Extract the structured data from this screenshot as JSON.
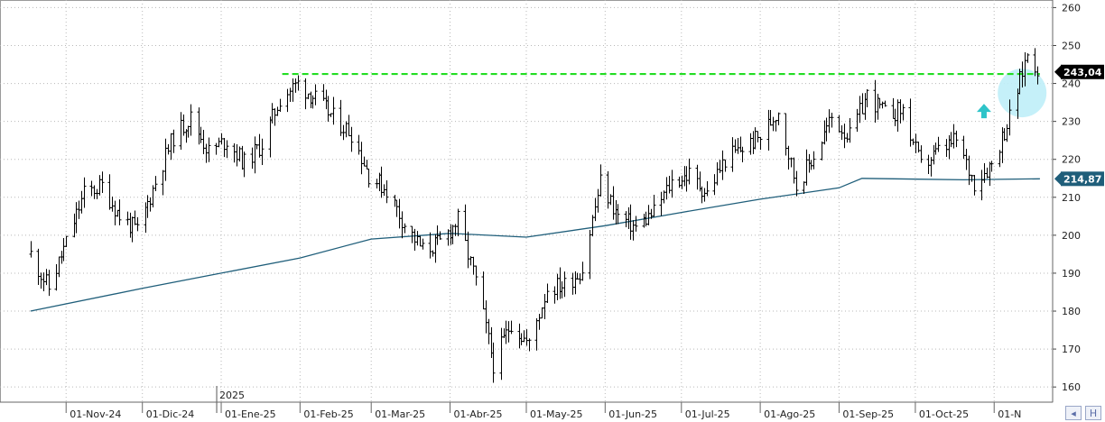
{
  "chart_data": {
    "type": "ohlc",
    "y_axis": {
      "ticks": [
        160,
        170,
        180,
        190,
        200,
        210,
        220,
        230,
        240,
        250,
        260
      ],
      "range": [
        156,
        262
      ],
      "position": "right"
    },
    "x_axis": {
      "labels": [
        "01-Nov-24",
        "01-Dic-24",
        "01-Ene-25",
        "01-Feb-25",
        "01-Mar-25",
        "01-Abr-25",
        "01-May-25",
        "01-Jun-25",
        "01-Jul-25",
        "01-Ago-25",
        "01-Sep-25",
        "01-Oct-25",
        "01-N"
      ],
      "year_marker": "2025"
    },
    "price_path": [
      {
        "date": "2024-10-18",
        "close": 195
      },
      {
        "date": "2024-10-25",
        "close": 186
      },
      {
        "date": "2024-11-01",
        "close": 198
      },
      {
        "date": "2024-11-08",
        "close": 211
      },
      {
        "date": "2024-11-15",
        "close": 213
      },
      {
        "date": "2024-11-22",
        "close": 205
      },
      {
        "date": "2024-11-29",
        "close": 201
      },
      {
        "date": "2024-12-06",
        "close": 214
      },
      {
        "date": "2024-12-13",
        "close": 226
      },
      {
        "date": "2024-12-20",
        "close": 231
      },
      {
        "date": "2024-12-27",
        "close": 222
      },
      {
        "date": "2025-01-03",
        "close": 225
      },
      {
        "date": "2025-01-10",
        "close": 219
      },
      {
        "date": "2025-01-17",
        "close": 224
      },
      {
        "date": "2025-01-24",
        "close": 236
      },
      {
        "date": "2025-01-31",
        "close": 240
      },
      {
        "date": "2025-02-07",
        "close": 236
      },
      {
        "date": "2025-02-14",
        "close": 231
      },
      {
        "date": "2025-02-21",
        "close": 227
      },
      {
        "date": "2025-02-28",
        "close": 216
      },
      {
        "date": "2025-03-07",
        "close": 212
      },
      {
        "date": "2025-03-14",
        "close": 203
      },
      {
        "date": "2025-03-21",
        "close": 196
      },
      {
        "date": "2025-03-28",
        "close": 198
      },
      {
        "date": "2025-04-04",
        "close": 204
      },
      {
        "date": "2025-04-11",
        "close": 188
      },
      {
        "date": "2025-04-18",
        "close": 166
      },
      {
        "date": "2025-04-25",
        "close": 177
      },
      {
        "date": "2025-05-02",
        "close": 171
      },
      {
        "date": "2025-05-09",
        "close": 186
      },
      {
        "date": "2025-05-16",
        "close": 187
      },
      {
        "date": "2025-05-23",
        "close": 191
      },
      {
        "date": "2025-05-30",
        "close": 214
      },
      {
        "date": "2025-06-06",
        "close": 205
      },
      {
        "date": "2025-06-13",
        "close": 202
      },
      {
        "date": "2025-06-20",
        "close": 206
      },
      {
        "date": "2025-06-27",
        "close": 214
      },
      {
        "date": "2025-07-04",
        "close": 216
      },
      {
        "date": "2025-07-11",
        "close": 211
      },
      {
        "date": "2025-07-18",
        "close": 220
      },
      {
        "date": "2025-07-25",
        "close": 223
      },
      {
        "date": "2025-08-01",
        "close": 226
      },
      {
        "date": "2025-08-08",
        "close": 233
      },
      {
        "date": "2025-08-15",
        "close": 213
      },
      {
        "date": "2025-08-22",
        "close": 221
      },
      {
        "date": "2025-08-29",
        "close": 231
      },
      {
        "date": "2025-09-05",
        "close": 226
      },
      {
        "date": "2025-09-12",
        "close": 237
      },
      {
        "date": "2025-09-19",
        "close": 232
      },
      {
        "date": "2025-09-26",
        "close": 233
      },
      {
        "date": "2025-10-03",
        "close": 218
      },
      {
        "date": "2025-10-10",
        "close": 222
      },
      {
        "date": "2025-10-17",
        "close": 225
      },
      {
        "date": "2025-10-24",
        "close": 214
      },
      {
        "date": "2025-10-31",
        "close": 219
      },
      {
        "date": "2025-11-07",
        "close": 231
      },
      {
        "date": "2025-11-14",
        "close": 248
      },
      {
        "date": "2025-11-19",
        "close": 243.04
      }
    ],
    "moving_average": [
      {
        "date": "2024-10-18",
        "value": 180
      },
      {
        "date": "2024-12-01",
        "value": 186
      },
      {
        "date": "2025-01-01",
        "value": 190
      },
      {
        "date": "2025-02-01",
        "value": 194
      },
      {
        "date": "2025-03-01",
        "value": 199
      },
      {
        "date": "2025-04-01",
        "value": 200.5
      },
      {
        "date": "2025-05-01",
        "value": 199.5
      },
      {
        "date": "2025-06-01",
        "value": 202.5
      },
      {
        "date": "2025-07-01",
        "value": 206
      },
      {
        "date": "2025-08-01",
        "value": 209.5
      },
      {
        "date": "2025-09-01",
        "value": 212.5
      },
      {
        "date": "2025-09-10",
        "value": 215
      },
      {
        "date": "2025-10-20",
        "value": 214.6
      },
      {
        "date": "2025-11-19",
        "value": 214.87
      }
    ],
    "resistance": {
      "value": 242.5,
      "from": "2025-01-25",
      "to": "2025-11-19",
      "color": "#22dd22"
    },
    "last_price": {
      "label": "243,04",
      "value": 243.04,
      "color": "#000000"
    },
    "ma_last": {
      "label": "214,87",
      "value": 214.87,
      "color": "#1f5e7a"
    },
    "highlight_circle": {
      "date": "2025-11-12",
      "value": 237.5,
      "color": "#bfeef8"
    },
    "arrow": {
      "date": "2025-10-28",
      "value": 232.5,
      "color": "#2ec4c9"
    },
    "colors": {
      "bars": "#000000",
      "ma_line": "#1f5e7a",
      "grid": "#b8b8b8"
    },
    "grid": "dotted",
    "legend": "none"
  },
  "controls": {
    "left_icon": "chevron-left-icon",
    "right_icon": "h-icon",
    "right_label": "H"
  }
}
